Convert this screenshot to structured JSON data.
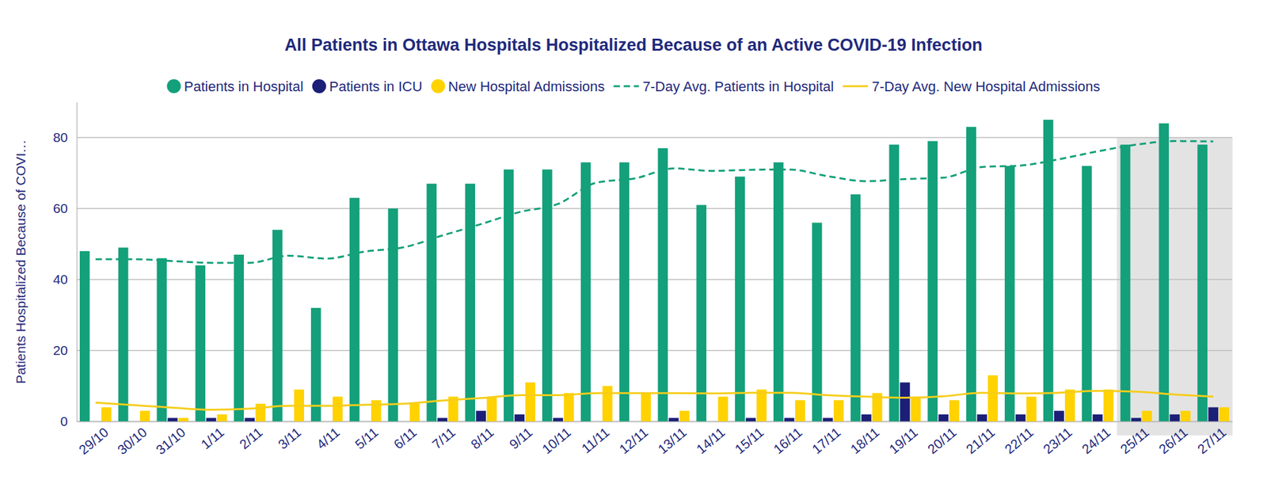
{
  "chart_data": {
    "type": "bar",
    "title": "All Patients in Ottawa Hospitals Hospitalized Because of an Active COVID-19 Infection",
    "y_label": "Patients Hospitalized Because of COVI…",
    "categories": [
      "29/10",
      "30/10",
      "31/10",
      "1/11",
      "2/11",
      "3/11",
      "4/11",
      "5/11",
      "6/11",
      "7/11",
      "8/11",
      "9/11",
      "10/11",
      "11/11",
      "12/11",
      "13/11",
      "14/11",
      "15/11",
      "16/11",
      "17/11",
      "18/11",
      "19/11",
      "20/11",
      "21/11",
      "22/11",
      "23/11",
      "24/11",
      "25/11",
      "26/11",
      "27/11"
    ],
    "ylim": [
      0,
      90
    ],
    "yticks": [
      0,
      20,
      40,
      60,
      80
    ],
    "grid": true,
    "legend": "top",
    "shaded": {
      "from": "25/11",
      "to": "27/11"
    },
    "series": [
      {
        "name": "Patients in Hospital",
        "type": "bar",
        "color": "#13a07a",
        "values": [
          48,
          49,
          46,
          44,
          47,
          54,
          32,
          63,
          60,
          67,
          67,
          71,
          71,
          73,
          73,
          77,
          61,
          69,
          73,
          56,
          64,
          78,
          79,
          83,
          72,
          85,
          72,
          78,
          84,
          78
        ]
      },
      {
        "name": "Patients in ICU",
        "type": "bar",
        "color": "#1b1f78",
        "values": [
          0,
          0,
          1,
          1,
          1,
          0,
          0,
          0,
          0,
          1,
          3,
          2,
          1,
          0,
          0,
          1,
          0,
          1,
          1,
          1,
          2,
          11,
          2,
          2,
          2,
          3,
          2,
          1,
          2,
          4
        ]
      },
      {
        "name": "New Hospital Admissions",
        "type": "bar",
        "color": "#ffd200",
        "values": [
          4,
          3,
          1,
          2,
          5,
          9,
          7,
          6,
          5,
          7,
          7,
          11,
          8,
          10,
          8,
          3,
          7,
          9,
          6,
          6,
          8,
          7,
          6,
          13,
          7,
          9,
          9,
          3,
          3,
          4
        ]
      },
      {
        "name": "7-Day Avg. Patients in Hospital",
        "type": "line",
        "line_style": "dashed",
        "color": "#13a07a",
        "values": [
          45.7,
          45.7,
          45.2,
          44.7,
          44.7,
          46.7,
          45.9,
          47.9,
          49.1,
          52.4,
          55.6,
          59,
          61.3,
          67.3,
          68.5,
          71.3,
          70.6,
          70.9,
          71,
          69.1,
          67.7,
          68.3,
          68.7,
          71.7,
          72.1,
          73.9,
          76.1,
          78,
          79,
          78.9
        ]
      },
      {
        "name": "7-Day Avg. New Hospital Admissions",
        "type": "line",
        "line_style": "solid",
        "color": "#f6cd1a",
        "values": [
          5.3,
          4.6,
          3.9,
          3.3,
          3.6,
          4.4,
          4.4,
          4.7,
          5.0,
          5.9,
          6.6,
          7.4,
          7.4,
          8.0,
          8.0,
          8.0,
          7.9,
          8.1,
          8.1,
          7.4,
          7.0,
          6.7,
          7.1,
          8.1,
          7.9,
          8.1,
          8.6,
          8.4,
          7.6,
          7.0
        ]
      }
    ]
  }
}
